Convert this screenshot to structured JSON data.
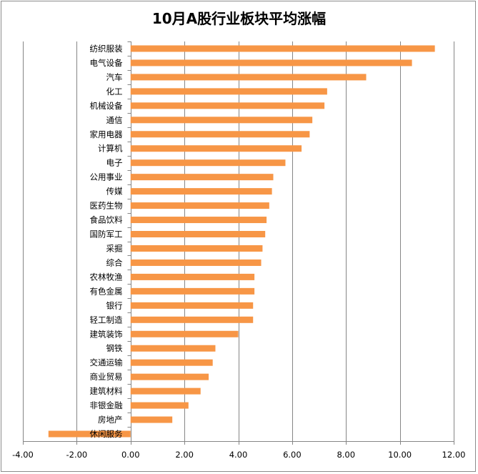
{
  "chart_data": {
    "type": "bar",
    "orientation": "horizontal",
    "title": "10月A股行业板块平均涨幅",
    "xlabel": "",
    "ylabel": "",
    "xlim": [
      -4,
      12
    ],
    "xticks": [
      -4,
      -2,
      0,
      2,
      4,
      6,
      8,
      10,
      12
    ],
    "xtick_labels": [
      "-4.00",
      "-2.00",
      "0.00",
      "2.00",
      "4.00",
      "6.00",
      "8.00",
      "10.00",
      "12.00"
    ],
    "grid": "vertical major",
    "legend": "none",
    "bar_color": "#F79646",
    "categories": [
      "纺织服装",
      "电气设备",
      "汽车",
      "化工",
      "机械设备",
      "通信",
      "家用电器",
      "计算机",
      "电子",
      "公用事业",
      "传媒",
      "医药生物",
      "食品饮料",
      "国防军工",
      "采掘",
      "综合",
      "农林牧渔",
      "有色金属",
      "银行",
      "轻工制造",
      "建筑装饰",
      "钢铁",
      "交通运输",
      "商业贸易",
      "建筑材料",
      "非银金融",
      "房地产",
      "休闲服务"
    ],
    "values": [
      11.3,
      10.45,
      8.75,
      7.3,
      7.2,
      6.75,
      6.65,
      6.35,
      5.75,
      5.3,
      5.25,
      5.15,
      5.05,
      5.0,
      4.9,
      4.85,
      4.6,
      4.6,
      4.55,
      4.55,
      4.0,
      3.15,
      3.05,
      2.9,
      2.6,
      2.15,
      1.55,
      -3.05
    ]
  }
}
